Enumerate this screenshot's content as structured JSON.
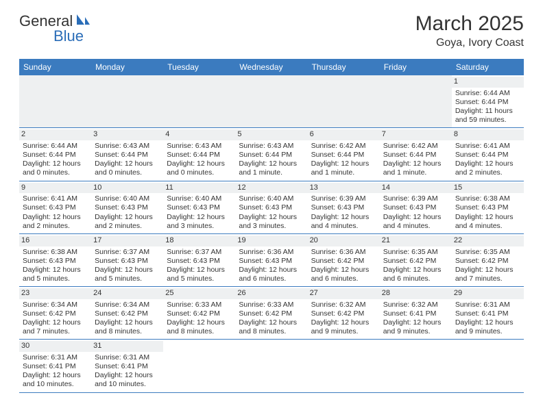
{
  "logo": {
    "text1": "General",
    "text2": "Blue"
  },
  "title": "March 2025",
  "location": "Goya, Ivory Coast",
  "weekdays": [
    "Sunday",
    "Monday",
    "Tuesday",
    "Wednesday",
    "Thursday",
    "Friday",
    "Saturday"
  ],
  "colors": {
    "header_bg": "#3b7bbf",
    "daynum_bg": "#eef0f1",
    "row_border": "#3b7bbf",
    "logo_blue": "#2a6db8"
  },
  "leading_blanks": 6,
  "days": [
    {
      "n": 1,
      "sunrise": "6:44 AM",
      "sunset": "6:44 PM",
      "daylight": "11 hours and 59 minutes."
    },
    {
      "n": 2,
      "sunrise": "6:44 AM",
      "sunset": "6:44 PM",
      "daylight": "12 hours and 0 minutes."
    },
    {
      "n": 3,
      "sunrise": "6:43 AM",
      "sunset": "6:44 PM",
      "daylight": "12 hours and 0 minutes."
    },
    {
      "n": 4,
      "sunrise": "6:43 AM",
      "sunset": "6:44 PM",
      "daylight": "12 hours and 0 minutes."
    },
    {
      "n": 5,
      "sunrise": "6:43 AM",
      "sunset": "6:44 PM",
      "daylight": "12 hours and 1 minute."
    },
    {
      "n": 6,
      "sunrise": "6:42 AM",
      "sunset": "6:44 PM",
      "daylight": "12 hours and 1 minute."
    },
    {
      "n": 7,
      "sunrise": "6:42 AM",
      "sunset": "6:44 PM",
      "daylight": "12 hours and 1 minute."
    },
    {
      "n": 8,
      "sunrise": "6:41 AM",
      "sunset": "6:44 PM",
      "daylight": "12 hours and 2 minutes."
    },
    {
      "n": 9,
      "sunrise": "6:41 AM",
      "sunset": "6:43 PM",
      "daylight": "12 hours and 2 minutes."
    },
    {
      "n": 10,
      "sunrise": "6:40 AM",
      "sunset": "6:43 PM",
      "daylight": "12 hours and 2 minutes."
    },
    {
      "n": 11,
      "sunrise": "6:40 AM",
      "sunset": "6:43 PM",
      "daylight": "12 hours and 3 minutes."
    },
    {
      "n": 12,
      "sunrise": "6:40 AM",
      "sunset": "6:43 PM",
      "daylight": "12 hours and 3 minutes."
    },
    {
      "n": 13,
      "sunrise": "6:39 AM",
      "sunset": "6:43 PM",
      "daylight": "12 hours and 4 minutes."
    },
    {
      "n": 14,
      "sunrise": "6:39 AM",
      "sunset": "6:43 PM",
      "daylight": "12 hours and 4 minutes."
    },
    {
      "n": 15,
      "sunrise": "6:38 AM",
      "sunset": "6:43 PM",
      "daylight": "12 hours and 4 minutes."
    },
    {
      "n": 16,
      "sunrise": "6:38 AM",
      "sunset": "6:43 PM",
      "daylight": "12 hours and 5 minutes."
    },
    {
      "n": 17,
      "sunrise": "6:37 AM",
      "sunset": "6:43 PM",
      "daylight": "12 hours and 5 minutes."
    },
    {
      "n": 18,
      "sunrise": "6:37 AM",
      "sunset": "6:43 PM",
      "daylight": "12 hours and 5 minutes."
    },
    {
      "n": 19,
      "sunrise": "6:36 AM",
      "sunset": "6:43 PM",
      "daylight": "12 hours and 6 minutes."
    },
    {
      "n": 20,
      "sunrise": "6:36 AM",
      "sunset": "6:42 PM",
      "daylight": "12 hours and 6 minutes."
    },
    {
      "n": 21,
      "sunrise": "6:35 AM",
      "sunset": "6:42 PM",
      "daylight": "12 hours and 6 minutes."
    },
    {
      "n": 22,
      "sunrise": "6:35 AM",
      "sunset": "6:42 PM",
      "daylight": "12 hours and 7 minutes."
    },
    {
      "n": 23,
      "sunrise": "6:34 AM",
      "sunset": "6:42 PM",
      "daylight": "12 hours and 7 minutes."
    },
    {
      "n": 24,
      "sunrise": "6:34 AM",
      "sunset": "6:42 PM",
      "daylight": "12 hours and 8 minutes."
    },
    {
      "n": 25,
      "sunrise": "6:33 AM",
      "sunset": "6:42 PM",
      "daylight": "12 hours and 8 minutes."
    },
    {
      "n": 26,
      "sunrise": "6:33 AM",
      "sunset": "6:42 PM",
      "daylight": "12 hours and 8 minutes."
    },
    {
      "n": 27,
      "sunrise": "6:32 AM",
      "sunset": "6:42 PM",
      "daylight": "12 hours and 9 minutes."
    },
    {
      "n": 28,
      "sunrise": "6:32 AM",
      "sunset": "6:41 PM",
      "daylight": "12 hours and 9 minutes."
    },
    {
      "n": 29,
      "sunrise": "6:31 AM",
      "sunset": "6:41 PM",
      "daylight": "12 hours and 9 minutes."
    },
    {
      "n": 30,
      "sunrise": "6:31 AM",
      "sunset": "6:41 PM",
      "daylight": "12 hours and 10 minutes."
    },
    {
      "n": 31,
      "sunrise": "6:31 AM",
      "sunset": "6:41 PM",
      "daylight": "12 hours and 10 minutes."
    }
  ],
  "labels": {
    "sunrise": "Sunrise:",
    "sunset": "Sunset:",
    "daylight": "Daylight:"
  }
}
